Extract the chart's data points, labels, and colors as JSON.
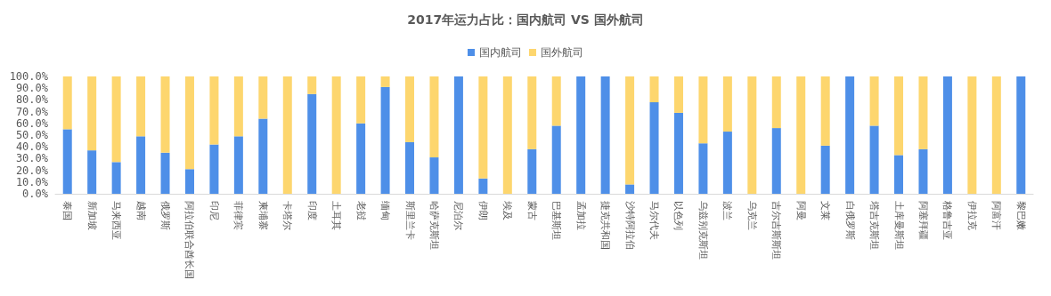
{
  "chart_data": {
    "type": "bar",
    "title": "2017年运力占比：国内航司 VS 国外航司",
    "stacked": true,
    "legend": "top",
    "grid": false,
    "categories": [
      "泰国",
      "新加坡",
      "马来西亚",
      "越南",
      "俄罗斯",
      "阿拉伯联合酋长国",
      "印尼",
      "菲律宾",
      "柬埔寨",
      "卡塔尔",
      "印度",
      "土耳其",
      "老挝",
      "缅甸",
      "斯里兰卡",
      "哈萨克斯坦",
      "尼泊尔",
      "伊朗",
      "埃及",
      "蒙古",
      "巴基斯坦",
      "孟加拉",
      "捷克共和国",
      "沙特阿拉伯",
      "马尔代夫",
      "以色列",
      "乌兹别克斯坦",
      "波兰",
      "乌克兰",
      "吉尔吉斯斯坦",
      "阿曼",
      "文莱",
      "白俄罗斯",
      "塔吉克斯坦",
      "土库曼斯坦",
      "阿塞拜疆",
      "格鲁吉亚",
      "伊拉克",
      "阿富汗",
      "黎巴嫩"
    ],
    "series": [
      {
        "name": "国内航司",
        "color": "#4e8fe8",
        "values": [
          55,
          37,
          27,
          49,
          35,
          21,
          42,
          49,
          64,
          0,
          85,
          0,
          60,
          91,
          44,
          31,
          100,
          13,
          0,
          38,
          58,
          100,
          100,
          8,
          78,
          69,
          43,
          53,
          0,
          56,
          0,
          41,
          100,
          58,
          33,
          38,
          100,
          0,
          0,
          100
        ]
      },
      {
        "name": "国外航司",
        "color": "#fdd66e",
        "values": [
          45,
          63,
          73,
          51,
          65,
          79,
          58,
          51,
          36,
          100,
          15,
          100,
          40,
          9,
          56,
          69,
          0,
          87,
          100,
          62,
          42,
          0,
          0,
          92,
          22,
          31,
          57,
          47,
          100,
          44,
          100,
          59,
          0,
          42,
          67,
          62,
          0,
          100,
          100,
          0
        ]
      }
    ],
    "ylim": [
      0,
      100
    ],
    "yticks": [
      {
        "value": 0,
        "label": "0.0%"
      },
      {
        "value": 10,
        "label": "10.0%"
      },
      {
        "value": 20,
        "label": "20.0%"
      },
      {
        "value": 30,
        "label": "30.0%"
      },
      {
        "value": 40,
        "label": "40.0%"
      },
      {
        "value": 50,
        "label": "50.0%"
      },
      {
        "value": 60,
        "label": "60.0%"
      },
      {
        "value": 70,
        "label": "70.0%"
      },
      {
        "value": 80,
        "label": "80.0%"
      },
      {
        "value": 90,
        "label": "90.0%"
      },
      {
        "value": 100,
        "label": "100.0%"
      }
    ]
  }
}
